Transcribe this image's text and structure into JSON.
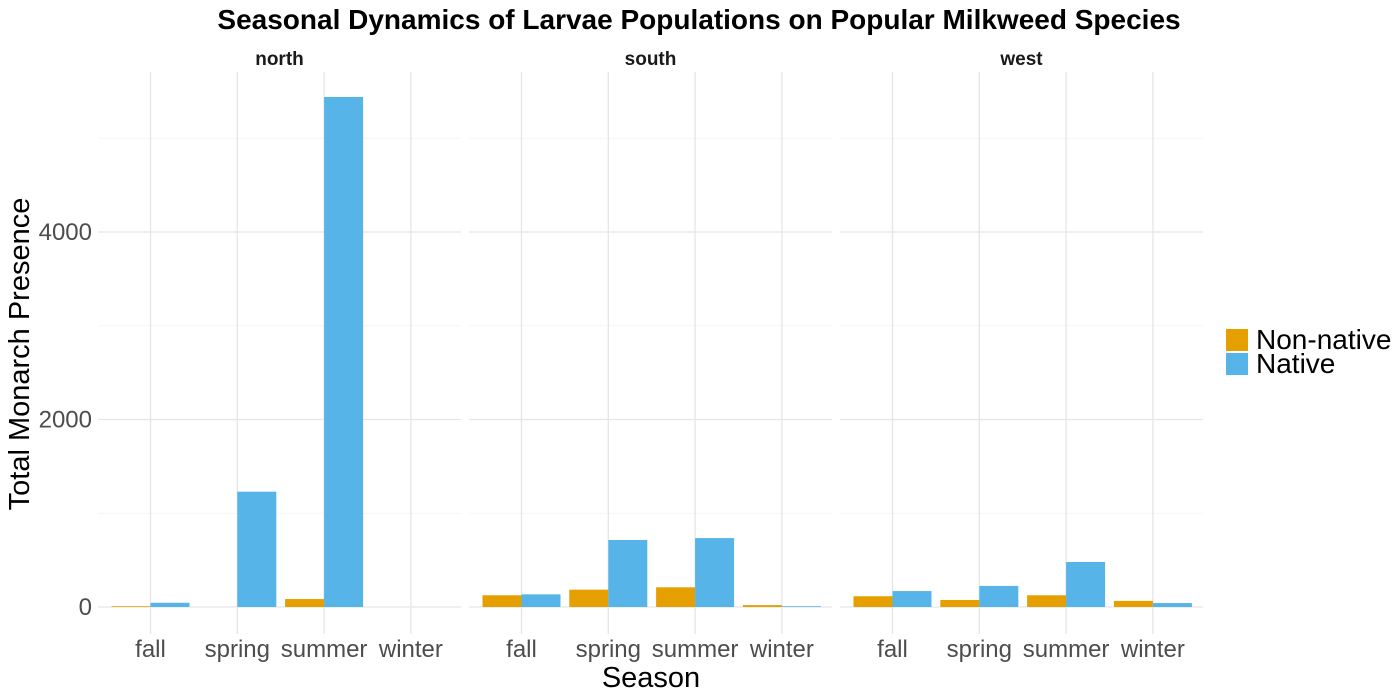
{
  "chart_data": {
    "type": "bar",
    "layout": "faceted-grouped-bar",
    "title": "Seasonal Dynamics of Larvae Populations on Popular Milkweed Species",
    "xlabel": "Season",
    "ylabel": "Total Monarch Presence",
    "ylim": [
      0,
      5700
    ],
    "yticks": [
      0,
      2000,
      4000
    ],
    "yticks_labels": [
      "0",
      "2000",
      "4000"
    ],
    "grid": true,
    "legend_position": "right",
    "categories": [
      "fall",
      "spring",
      "summer",
      "winter"
    ],
    "series_meta": [
      {
        "name": "Non-native",
        "color": "#E69F00"
      },
      {
        "name": "Native",
        "color": "#56B4E9"
      }
    ],
    "panels": [
      {
        "name": "north",
        "series": [
          {
            "name": "Non-native",
            "values": [
              8,
              0,
              85,
              0
            ]
          },
          {
            "name": "Native",
            "values": [
              45,
              1230,
              5440,
              0
            ]
          }
        ]
      },
      {
        "name": "south",
        "series": [
          {
            "name": "Non-native",
            "values": [
              125,
              185,
              210,
              20
            ]
          },
          {
            "name": "Native",
            "values": [
              135,
              715,
              735,
              8
            ]
          }
        ]
      },
      {
        "name": "west",
        "series": [
          {
            "name": "Non-native",
            "values": [
              115,
              75,
              125,
              65
            ]
          },
          {
            "name": "Native",
            "values": [
              170,
              225,
              480,
              42
            ]
          }
        ]
      }
    ]
  }
}
